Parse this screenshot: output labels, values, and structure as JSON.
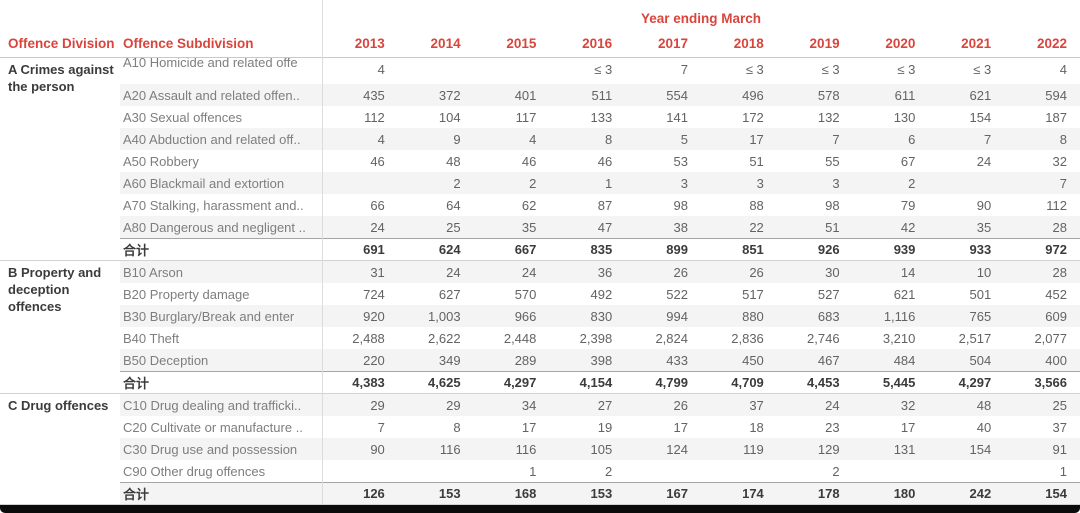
{
  "style": {
    "accent_red": "#d8453c",
    "band_gray": "#f4f4f4"
  },
  "header": {
    "year_group_label": "Year ending March",
    "col1": "Offence Division",
    "col2": "Offence Subdivision",
    "years": [
      "2013",
      "2014",
      "2015",
      "2016",
      "2017",
      "2018",
      "2019",
      "2020",
      "2021",
      "2022"
    ]
  },
  "sections": [
    {
      "division": "A Crimes against the person",
      "rows": [
        {
          "label": "A10 Homicide and related offe",
          "values": [
            "4",
            "",
            "",
            "≤ 3",
            "7",
            "≤ 3",
            "≤ 3",
            "≤ 3",
            "≤ 3",
            "4"
          ]
        },
        {
          "label": "A20 Assault and related offen..",
          "values": [
            "435",
            "372",
            "401",
            "511",
            "554",
            "496",
            "578",
            "611",
            "621",
            "594"
          ]
        },
        {
          "label": "A30 Sexual offences",
          "values": [
            "112",
            "104",
            "117",
            "133",
            "141",
            "172",
            "132",
            "130",
            "154",
            "187"
          ]
        },
        {
          "label": "A40 Abduction and related off..",
          "values": [
            "4",
            "9",
            "4",
            "8",
            "5",
            "17",
            "7",
            "6",
            "7",
            "8"
          ]
        },
        {
          "label": "A50 Robbery",
          "values": [
            "46",
            "48",
            "46",
            "46",
            "53",
            "51",
            "55",
            "67",
            "24",
            "32"
          ]
        },
        {
          "label": "A60 Blackmail and extortion",
          "values": [
            "",
            "2",
            "2",
            "1",
            "3",
            "3",
            "3",
            "2",
            "",
            "7"
          ]
        },
        {
          "label": "A70 Stalking, harassment and..",
          "values": [
            "66",
            "64",
            "62",
            "87",
            "98",
            "88",
            "98",
            "79",
            "90",
            "112"
          ]
        },
        {
          "label": "A80 Dangerous and negligent ..",
          "values": [
            "24",
            "25",
            "35",
            "47",
            "38",
            "22",
            "51",
            "42",
            "35",
            "28"
          ]
        }
      ],
      "total": {
        "label": "合计",
        "values": [
          "691",
          "624",
          "667",
          "835",
          "899",
          "851",
          "926",
          "939",
          "933",
          "972"
        ]
      }
    },
    {
      "division": "B Property and deception offences",
      "rows": [
        {
          "label": "B10 Arson",
          "values": [
            "31",
            "24",
            "24",
            "36",
            "26",
            "26",
            "30",
            "14",
            "10",
            "28"
          ]
        },
        {
          "label": "B20 Property damage",
          "values": [
            "724",
            "627",
            "570",
            "492",
            "522",
            "517",
            "527",
            "621",
            "501",
            "452"
          ]
        },
        {
          "label": "B30 Burglary/Break and enter",
          "values": [
            "920",
            "1,003",
            "966",
            "830",
            "994",
            "880",
            "683",
            "1,116",
            "765",
            "609"
          ]
        },
        {
          "label": "B40 Theft",
          "values": [
            "2,488",
            "2,622",
            "2,448",
            "2,398",
            "2,824",
            "2,836",
            "2,746",
            "3,210",
            "2,517",
            "2,077"
          ]
        },
        {
          "label": "B50 Deception",
          "values": [
            "220",
            "349",
            "289",
            "398",
            "433",
            "450",
            "467",
            "484",
            "504",
            "400"
          ]
        }
      ],
      "total": {
        "label": "合计",
        "values": [
          "4,383",
          "4,625",
          "4,297",
          "4,154",
          "4,799",
          "4,709",
          "4,453",
          "5,445",
          "4,297",
          "3,566"
        ]
      }
    },
    {
      "division": "C Drug offences",
      "rows": [
        {
          "label": "C10 Drug dealing and trafficki..",
          "values": [
            "29",
            "29",
            "34",
            "27",
            "26",
            "37",
            "24",
            "32",
            "48",
            "25"
          ]
        },
        {
          "label": "C20 Cultivate or manufacture ..",
          "values": [
            "7",
            "8",
            "17",
            "19",
            "17",
            "18",
            "23",
            "17",
            "40",
            "37"
          ]
        },
        {
          "label": "C30 Drug use and possession",
          "values": [
            "90",
            "116",
            "116",
            "105",
            "124",
            "119",
            "129",
            "131",
            "154",
            "91"
          ]
        },
        {
          "label": "C90 Other drug offences",
          "values": [
            "",
            "",
            "1",
            "2",
            "",
            "",
            "2",
            "",
            "",
            "1"
          ]
        }
      ],
      "total": {
        "label": "合计",
        "values": [
          "126",
          "153",
          "168",
          "153",
          "167",
          "174",
          "178",
          "180",
          "242",
          "154"
        ]
      }
    }
  ]
}
